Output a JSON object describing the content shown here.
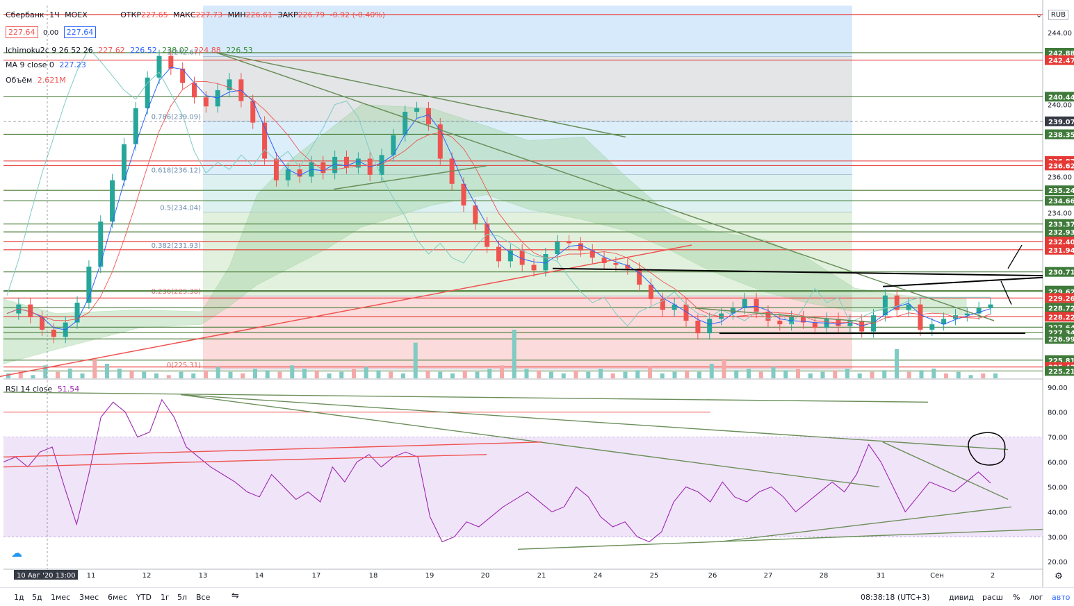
{
  "header": {
    "symbol": "Сбербанк",
    "timeframe": "1Ч",
    "exchange": "MOEX",
    "ohlc": {
      "o_label": "ОТКР",
      "o": "227.65",
      "h_label": "МАКС",
      "h": "227.73",
      "l_label": "МИН",
      "l": "226.61",
      "c_label": "ЗАКР",
      "c": "226.79",
      "change": "-0.92 (-0.40%)"
    },
    "bid": "227.64",
    "spread": "0.00",
    "ask": "227.64",
    "indicators": [
      {
        "name": "Ichimoku2c 9 26 52 26",
        "values": [
          "227.62",
          "226.52",
          "238.02",
          "224.88",
          "226.53"
        ]
      },
      {
        "name": "MA 9 close 0",
        "values": [
          "227.23"
        ]
      },
      {
        "name": "Объём",
        "values": [
          "2.621M"
        ]
      }
    ],
    "currency": "RUB"
  },
  "rsi": {
    "label": "RSI 14 close",
    "value": "51.54"
  },
  "colors": {
    "up": "#26a69a",
    "down": "#ef5350",
    "ichimoku_up": "#4caf50",
    "ichimoku_down": "#9e9e9e",
    "rsi": "#9c27b0",
    "ma": "#2962ff",
    "hline_red": "#e53935",
    "hline_green": "#4a7c3a"
  },
  "chart_data": {
    "type": "candlestick",
    "price_axis": {
      "min": 224.8,
      "max": 245.5
    },
    "price_labels": [
      "244.00",
      "240.00",
      "236.00",
      "234.00"
    ],
    "level_labels": [
      {
        "v": 242.88,
        "c": "green"
      },
      {
        "v": 242.47,
        "c": "red"
      },
      {
        "v": 240.44,
        "c": "green"
      },
      {
        "v": 239.07,
        "c": "dark"
      },
      {
        "v": 238.35,
        "c": "green"
      },
      {
        "v": 236.87,
        "c": "red"
      },
      {
        "v": 236.62,
        "c": "red"
      },
      {
        "v": 235.24,
        "c": "green"
      },
      {
        "v": 234.66,
        "c": "green"
      },
      {
        "v": 233.37,
        "c": "green"
      },
      {
        "v": 232.93,
        "c": "green"
      },
      {
        "v": 232.4,
        "c": "red"
      },
      {
        "v": 231.94,
        "c": "red"
      },
      {
        "v": 230.71,
        "c": "green"
      },
      {
        "v": 229.67,
        "c": "green"
      },
      {
        "v": 229.62,
        "c": "green"
      },
      {
        "v": 229.26,
        "c": "red"
      },
      {
        "v": 228.72,
        "c": "green"
      },
      {
        "v": 228.22,
        "c": "red"
      },
      {
        "v": 227.64,
        "c": "green"
      },
      {
        "v": 227.34,
        "c": "green"
      },
      {
        "v": 226.99,
        "c": "green"
      },
      {
        "v": 225.81,
        "c": "green"
      },
      {
        "v": 225.43,
        "c": "red"
      },
      {
        "v": 225.21,
        "c": "green"
      }
    ],
    "fib_levels": [
      {
        "label": "1(242.67)",
        "v": 242.67
      },
      {
        "label": "0.786(239.09)",
        "v": 239.09
      },
      {
        "label": "0.618(236.12)",
        "v": 236.12
      },
      {
        "label": "0.5(234.04)",
        "v": 234.04
      },
      {
        "label": "0.382(231.93)",
        "v": 231.93
      },
      {
        "label": "0.236(229.38)",
        "v": 229.38
      },
      {
        "label": "0(225.31)",
        "v": 225.31
      }
    ],
    "rsi_axis": {
      "min": 17,
      "max": 93,
      "labels": [
        "90.00",
        "80.00",
        "70.00",
        "60.00",
        "50.00",
        "40.00",
        "30.00",
        "20.00"
      ]
    },
    "time_labels": [
      "10 Авг '20  13:00",
      "11",
      "12",
      "13",
      "14",
      "17",
      "18",
      "19",
      "20",
      "21",
      "24",
      "25",
      "26",
      "27",
      "28",
      "31",
      "Сен",
      "2"
    ],
    "close_path": [
      228.4,
      228.9,
      228.2,
      227.5,
      227.1,
      227.9,
      229.0,
      231.0,
      233.5,
      235.8,
      237.8,
      239.8,
      241.5,
      242.7,
      242.0,
      241.2,
      240.4,
      239.9,
      240.8,
      241.4,
      240.2,
      239.0,
      237.0,
      235.8,
      236.4,
      236.0,
      236.8,
      236.2,
      237.1,
      236.5,
      237.0,
      236.1,
      237.2,
      238.3,
      239.6,
      239.8,
      238.9,
      237.0,
      235.6,
      234.4,
      233.4,
      232.1,
      231.3,
      231.9,
      231.1,
      230.8,
      231.7,
      232.4,
      232.3,
      231.9,
      231.5,
      231.2,
      231.1,
      230.9,
      230.0,
      229.2,
      228.6,
      228.9,
      228.0,
      227.3,
      228.1,
      228.4,
      228.7,
      229.2,
      228.5,
      228.0,
      227.8,
      228.2,
      227.9,
      227.6,
      228.1,
      227.7,
      228.0,
      227.4,
      228.3,
      229.4,
      228.6,
      228.9,
      227.5,
      227.8,
      228.1,
      228.3,
      228.4,
      228.7,
      228.9
    ],
    "rsi_path": [
      60,
      62,
      58,
      64,
      66,
      50,
      35,
      55,
      78,
      84,
      80,
      70,
      72,
      85,
      78,
      66,
      62,
      58,
      55,
      52,
      48,
      46,
      55,
      50,
      45,
      48,
      44,
      58,
      52,
      60,
      63,
      58,
      62,
      64,
      62,
      38,
      28,
      30,
      36,
      34,
      38,
      42,
      45,
      48,
      44,
      40,
      42,
      50,
      46,
      38,
      34,
      36,
      30,
      28,
      32,
      44,
      50,
      48,
      44,
      52,
      46,
      44,
      48,
      50,
      46,
      40,
      44,
      48,
      52,
      48,
      55,
      67,
      60,
      50,
      40,
      46,
      52,
      50,
      48,
      52,
      56,
      51.54
    ],
    "volume_path": [
      3,
      5,
      2,
      8,
      4,
      6,
      3,
      12,
      9,
      6,
      5,
      4,
      3,
      2,
      4,
      3,
      5,
      7,
      4,
      3,
      6,
      5,
      4,
      8,
      6,
      5,
      3,
      4,
      6,
      7,
      5,
      4,
      3,
      22,
      5,
      4,
      3,
      5,
      4,
      6,
      8,
      30,
      6,
      5,
      4,
      3,
      5,
      4,
      6,
      3,
      4,
      5,
      7,
      3,
      4,
      5,
      4,
      9,
      12,
      5,
      6,
      4,
      7,
      5,
      6,
      3,
      4,
      5,
      6,
      3,
      4,
      5,
      18,
      4,
      5,
      6,
      3,
      4,
      2,
      3,
      3
    ]
  },
  "bottom": {
    "timeframes": [
      "1д",
      "5д",
      "1мес",
      "3мес",
      "6мес",
      "YTD",
      "1г",
      "5л",
      "Все"
    ],
    "clock": "08:38:18 (UTC+3)",
    "options": [
      "дивид",
      "расш",
      "%",
      "лог",
      "авто"
    ]
  }
}
